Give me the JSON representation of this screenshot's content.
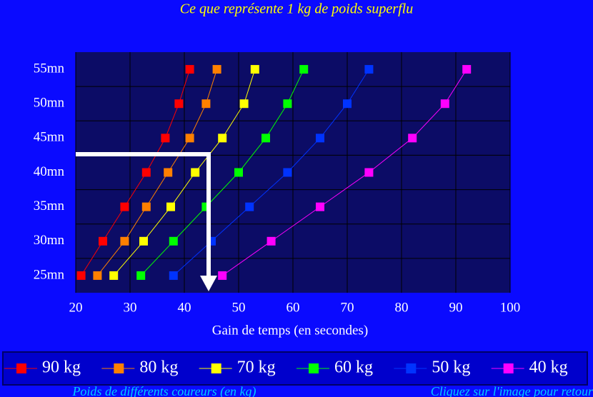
{
  "chart_data": {
    "type": "line",
    "title": "Ce que représente 1 kg de poids superflu",
    "x_label": "Gain de temps (en secondes)",
    "categories": [
      "25mn",
      "30mn",
      "35mn",
      "40mn",
      "45mn",
      "50mn",
      "55mn"
    ],
    "xlim": [
      20,
      100
    ],
    "xticks": [
      20,
      30,
      40,
      50,
      60,
      70,
      80,
      90,
      100
    ],
    "grid": true,
    "series": [
      {
        "name": "90 kg",
        "color": "#ff0000",
        "values": [
          21,
          25,
          29,
          33,
          36.5,
          39,
          41
        ]
      },
      {
        "name": "80 kg",
        "color": "#ff8000",
        "values": [
          24,
          29,
          33,
          37,
          41,
          44,
          46
        ]
      },
      {
        "name": "70 kg",
        "color": "#ffff00",
        "values": [
          27,
          32.5,
          37.5,
          42,
          47,
          51,
          53
        ]
      },
      {
        "name": "60 kg",
        "color": "#00ff00",
        "values": [
          32,
          38,
          44,
          50,
          55,
          59,
          62
        ]
      },
      {
        "name": "50 kg",
        "color": "#0033ff",
        "values": [
          38,
          45,
          52,
          59,
          65,
          70,
          74
        ]
      },
      {
        "name": "40 kg",
        "color": "#ff00ff",
        "values": [
          47,
          56,
          65,
          74,
          82,
          88,
          92
        ]
      }
    ],
    "legend_caption": "Poids de différents coureurs (en kg)",
    "back_link": "Cliquez sur l'image pour retour"
  }
}
